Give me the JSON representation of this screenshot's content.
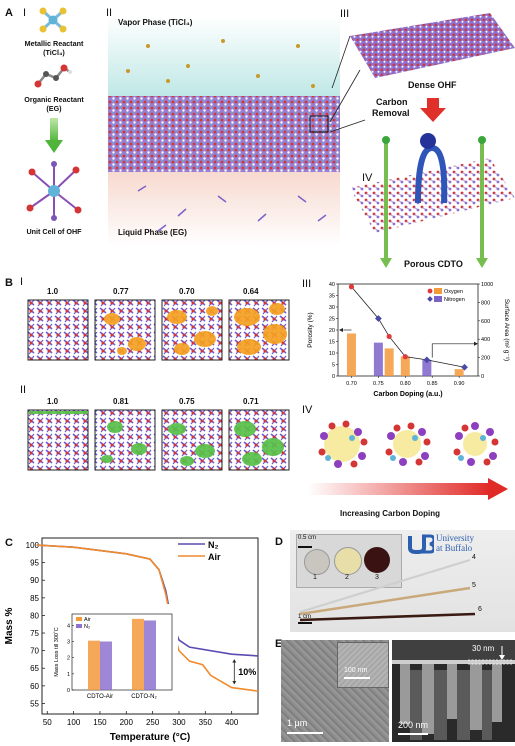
{
  "panelA": {
    "label": "A",
    "sub_I": "I",
    "sub_II": "II",
    "sub_III": "III",
    "sub_IV": "IV",
    "metallic": "Metallic Reactant",
    "metallic_formula": "(TiCl₄)",
    "organic": "Organic Reactant",
    "organic_formula": "(EG)",
    "unitcell": "Unit Cell of OHF",
    "vapor": "Vapor Phase (TiCl₄)",
    "liquid": "Liquid Phase (EG)",
    "dense": "Dense OHF",
    "carbon_removal_1": "Carbon",
    "carbon_removal_2": "Removal",
    "porous": "Porous CDTO"
  },
  "panelB": {
    "label": "B",
    "sub_I": "I",
    "sub_II": "II",
    "sub_III": "III",
    "sub_IV": "IV",
    "row1_values": [
      "1.0",
      "0.77",
      "0.70",
      "0.64"
    ],
    "row2_values": [
      "1.0",
      "0.81",
      "0.75",
      "0.71"
    ],
    "increasing": "Increasing Carbon Doping"
  },
  "panelD": {
    "label": "D",
    "scale1": "0.5 cm",
    "scale2": "1 cm",
    "samples": [
      "1",
      "2",
      "3",
      "4",
      "5",
      "6"
    ],
    "univ1": "University",
    "univ2": "at Buffalo"
  },
  "panelE": {
    "label": "E",
    "inset_scale": "100 nm",
    "scale_left": "1 μm",
    "scale_right": "200 nm",
    "thickness": "30 nm"
  },
  "chart_data": [
    {
      "id": "B-III",
      "type": "bar",
      "categories": [
        "0.70",
        "0.75",
        "0.80",
        "0.85",
        "0.90"
      ],
      "series": [
        {
          "name": "Oxygen",
          "values": [
            18.5,
            null,
            8.5,
            null,
            3
          ]
        },
        {
          "name": "Nitrogen",
          "values": [
            null,
            14.5,
            null,
            7,
            null
          ]
        }
      ],
      "bars": [
        {
          "x": 0.7,
          "value": 18.5,
          "series": "Oxygen"
        },
        {
          "x": 0.75,
          "value": 14.5,
          "series": "Nitrogen"
        },
        {
          "x": 0.77,
          "value": 12,
          "series": "Oxygen"
        },
        {
          "x": 0.8,
          "value": 8.5,
          "series": "Oxygen"
        },
        {
          "x": 0.84,
          "value": 7,
          "series": "Nitrogen"
        },
        {
          "x": 0.9,
          "value": 3,
          "series": "Oxygen"
        }
      ],
      "surface_area": [
        {
          "x": 0.7,
          "value": 970,
          "series": "Oxygen"
        },
        {
          "x": 0.75,
          "value": 625,
          "series": "Nitrogen"
        },
        {
          "x": 0.77,
          "value": 430,
          "series": "Oxygen"
        },
        {
          "x": 0.8,
          "value": 210,
          "series": "Oxygen"
        },
        {
          "x": 0.84,
          "value": 175,
          "series": "Nitrogen"
        },
        {
          "x": 0.91,
          "value": 95,
          "series": "Nitrogen"
        }
      ],
      "xlabel": "Carbon Doping (a.u.)",
      "ylabel": "Porosity (%)",
      "y2label": "Surface Area (m² g⁻¹)",
      "xticks": [
        "0.70",
        "0.75",
        "0.80",
        "0.85",
        "0.90"
      ],
      "yticks": [
        "0",
        "5",
        "10",
        "15",
        "20",
        "25",
        "30",
        "35",
        "40"
      ],
      "y2ticks": [
        "0",
        "200",
        "400",
        "600",
        "800",
        "1000"
      ],
      "ylim": [
        0,
        40
      ],
      "y2lim": [
        0,
        1000
      ],
      "xlim": [
        0.675,
        0.935
      ],
      "legend": [
        "Oxygen",
        "Nitrogen"
      ],
      "colors": {
        "oxygen": "#f39a3b",
        "nitrogen": "#7d62c9",
        "oxygen_point": "#e03a3a",
        "nitrogen_point": "#4a4aa8"
      }
    },
    {
      "id": "C",
      "type": "line",
      "series": [
        {
          "name": "N₂",
          "x": [
            30,
            100,
            200,
            245,
            262,
            275,
            285,
            300,
            320,
            400,
            450
          ],
          "y": [
            100,
            99.4,
            97.5,
            96,
            93,
            87,
            79,
            73,
            71,
            69,
            68.5
          ]
        },
        {
          "name": "Air",
          "x": [
            30,
            100,
            200,
            245,
            262,
            275,
            285,
            300,
            320,
            345,
            360,
            400,
            450
          ],
          "y": [
            100,
            99.4,
            97.5,
            96,
            93,
            86,
            78,
            70,
            67,
            66,
            63,
            59.5,
            58.5
          ]
        }
      ],
      "xlabel": "Temperature (°C)",
      "ylabel": "Mass %",
      "xticks": [
        "50",
        "100",
        "150",
        "200",
        "250",
        "300",
        "350",
        "400"
      ],
      "yticks": [
        "55",
        "60",
        "65",
        "70",
        "75",
        "80",
        "85",
        "90",
        "95",
        "100"
      ],
      "xlim": [
        40,
        450
      ],
      "ylim": [
        52,
        102
      ],
      "annotation": "10%",
      "legend": [
        "N₂",
        "Air"
      ],
      "colors": {
        "n2": "#5b4bb3",
        "air": "#f08a2c"
      }
    },
    {
      "id": "C-inset",
      "type": "bar",
      "categories": [
        "CDTO-Air",
        "CDTO-N₂"
      ],
      "series": [
        {
          "name": "Air",
          "values": [
            3.05,
            4.4
          ]
        },
        {
          "name": "N₂",
          "values": [
            3.0,
            4.3
          ]
        }
      ],
      "ylabel": "Mass Loss till 300˚C",
      "yticks": [
        "0",
        "1",
        "2",
        "3",
        "4"
      ],
      "ylim": [
        0,
        4.7
      ],
      "legend": [
        "Air",
        "N₂"
      ]
    }
  ]
}
